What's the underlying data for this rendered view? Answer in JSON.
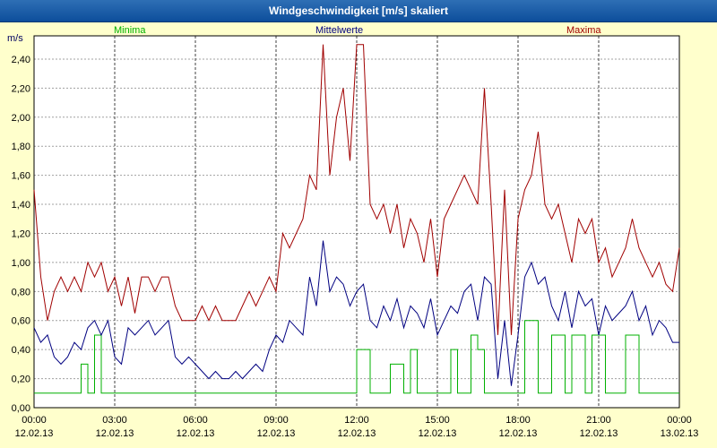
{
  "title_bar": {
    "title": "Windgeschwindigkeit [m/s] skaliert",
    "bg_color": "#0d4e9b",
    "text_color": "#ffffff"
  },
  "legend": [
    {
      "label": "Minima",
      "color": "#00b000"
    },
    {
      "label": "Mittelwerte",
      "color": "#000080"
    },
    {
      "label": "Maxima",
      "color": "#a00000"
    }
  ],
  "chart_data": {
    "type": "line",
    "title": "Windgeschwindigkeit [m/s] skaliert",
    "ylabel": "m/s",
    "ylim": [
      0,
      2.56
    ],
    "grid": "dashed",
    "legend_position": "top",
    "x_step_minutes": 15,
    "x_range_hours": [
      0,
      24
    ],
    "y_ticks": [
      {
        "v": 0.0,
        "label": "0,00"
      },
      {
        "v": 0.2,
        "label": "0,20"
      },
      {
        "v": 0.4,
        "label": "0,40"
      },
      {
        "v": 0.6,
        "label": "0,60"
      },
      {
        "v": 0.8,
        "label": "0,80"
      },
      {
        "v": 1.0,
        "label": "1,00"
      },
      {
        "v": 1.2,
        "label": "1,20"
      },
      {
        "v": 1.4,
        "label": "1,40"
      },
      {
        "v": 1.6,
        "label": "1,60"
      },
      {
        "v": 1.8,
        "label": "1,80"
      },
      {
        "v": 2.0,
        "label": "2,00"
      },
      {
        "v": 2.2,
        "label": "2,20"
      },
      {
        "v": 2.4,
        "label": "2,40"
      }
    ],
    "x_ticks": [
      {
        "h": 0,
        "time": "00:00",
        "date": "12.02.13"
      },
      {
        "h": 3,
        "time": "03:00",
        "date": "12.02.13"
      },
      {
        "h": 6,
        "time": "06:00",
        "date": "12.02.13"
      },
      {
        "h": 9,
        "time": "09:00",
        "date": "12.02.13"
      },
      {
        "h": 12,
        "time": "12:00",
        "date": "12.02.13"
      },
      {
        "h": 15,
        "time": "15:00",
        "date": "12.02.13"
      },
      {
        "h": 18,
        "time": "18:00",
        "date": "12.02.13"
      },
      {
        "h": 21,
        "time": "21:00",
        "date": "12.02.13"
      },
      {
        "h": 24,
        "time": "00:00",
        "date": "13.02.13"
      }
    ],
    "series": [
      {
        "name": "Minima",
        "color": "#00b000",
        "step": true,
        "values": [
          0.1,
          0.1,
          0.1,
          0.1,
          0.1,
          0.1,
          0.1,
          0.3,
          0.1,
          0.5,
          0.1,
          0.1,
          0.1,
          0.1,
          0.1,
          0.1,
          0.1,
          0.1,
          0.1,
          0.1,
          0.1,
          0.1,
          0.1,
          0.1,
          0.1,
          0.1,
          0.1,
          0.1,
          0.1,
          0.1,
          0.1,
          0.1,
          0.1,
          0.1,
          0.1,
          0.1,
          0.1,
          0.1,
          0.1,
          0.1,
          0.1,
          0.1,
          0.1,
          0.1,
          0.1,
          0.1,
          0.1,
          0.1,
          0.4,
          0.4,
          0.1,
          0.1,
          0.1,
          0.3,
          0.3,
          0.1,
          0.4,
          0.1,
          0.1,
          0.1,
          0.1,
          0.1,
          0.4,
          0.1,
          0.1,
          0.5,
          0.4,
          0.1,
          0.1,
          0.1,
          0.1,
          0.1,
          0.1,
          0.6,
          0.6,
          0.1,
          0.1,
          0.5,
          0.5,
          0.1,
          0.5,
          0.5,
          0.1,
          0.5,
          0.5,
          0.1,
          0.1,
          0.1,
          0.5,
          0.5,
          0.1,
          0.1,
          0.1,
          0.1,
          0.1,
          0.1,
          0.1
        ]
      },
      {
        "name": "Mittelwerte",
        "color": "#000080",
        "step": false,
        "values": [
          0.55,
          0.45,
          0.5,
          0.35,
          0.3,
          0.35,
          0.45,
          0.4,
          0.55,
          0.6,
          0.5,
          0.6,
          0.35,
          0.3,
          0.55,
          0.5,
          0.55,
          0.6,
          0.5,
          0.55,
          0.6,
          0.35,
          0.3,
          0.35,
          0.3,
          0.25,
          0.2,
          0.25,
          0.2,
          0.2,
          0.25,
          0.2,
          0.25,
          0.3,
          0.25,
          0.4,
          0.5,
          0.45,
          0.6,
          0.55,
          0.5,
          0.9,
          0.7,
          1.15,
          0.8,
          0.9,
          0.85,
          0.7,
          0.8,
          0.85,
          0.6,
          0.55,
          0.7,
          0.6,
          0.75,
          0.55,
          0.7,
          0.65,
          0.55,
          0.75,
          0.5,
          0.6,
          0.7,
          0.65,
          0.8,
          0.85,
          0.6,
          0.9,
          0.85,
          0.2,
          0.6,
          0.15,
          0.5,
          0.9,
          1.0,
          0.85,
          0.9,
          0.7,
          0.6,
          0.8,
          0.55,
          0.8,
          0.7,
          0.75,
          0.5,
          0.7,
          0.6,
          0.65,
          0.7,
          0.8,
          0.6,
          0.7,
          0.5,
          0.6,
          0.55,
          0.45,
          0.45
        ]
      },
      {
        "name": "Maxima",
        "color": "#a00000",
        "step": false,
        "values": [
          1.5,
          0.9,
          0.6,
          0.8,
          0.9,
          0.8,
          0.9,
          0.8,
          1.0,
          0.9,
          1.0,
          0.8,
          0.9,
          0.7,
          0.9,
          0.65,
          0.9,
          0.9,
          0.8,
          0.9,
          0.9,
          0.7,
          0.6,
          0.6,
          0.6,
          0.7,
          0.6,
          0.7,
          0.6,
          0.6,
          0.6,
          0.7,
          0.8,
          0.7,
          0.8,
          0.9,
          0.8,
          1.2,
          1.1,
          1.2,
          1.3,
          1.6,
          1.5,
          2.5,
          1.6,
          2.0,
          2.2,
          1.7,
          2.5,
          2.5,
          1.4,
          1.3,
          1.4,
          1.2,
          1.4,
          1.1,
          1.3,
          1.2,
          1.0,
          1.3,
          0.9,
          1.3,
          1.4,
          1.5,
          1.6,
          1.5,
          1.4,
          2.2,
          1.4,
          0.5,
          1.5,
          0.5,
          1.3,
          1.5,
          1.6,
          1.9,
          1.4,
          1.3,
          1.4,
          1.2,
          1.0,
          1.3,
          1.2,
          1.3,
          1.0,
          1.1,
          0.9,
          1.0,
          1.1,
          1.3,
          1.1,
          1.0,
          0.9,
          1.0,
          0.85,
          0.8,
          1.1
        ]
      }
    ]
  }
}
